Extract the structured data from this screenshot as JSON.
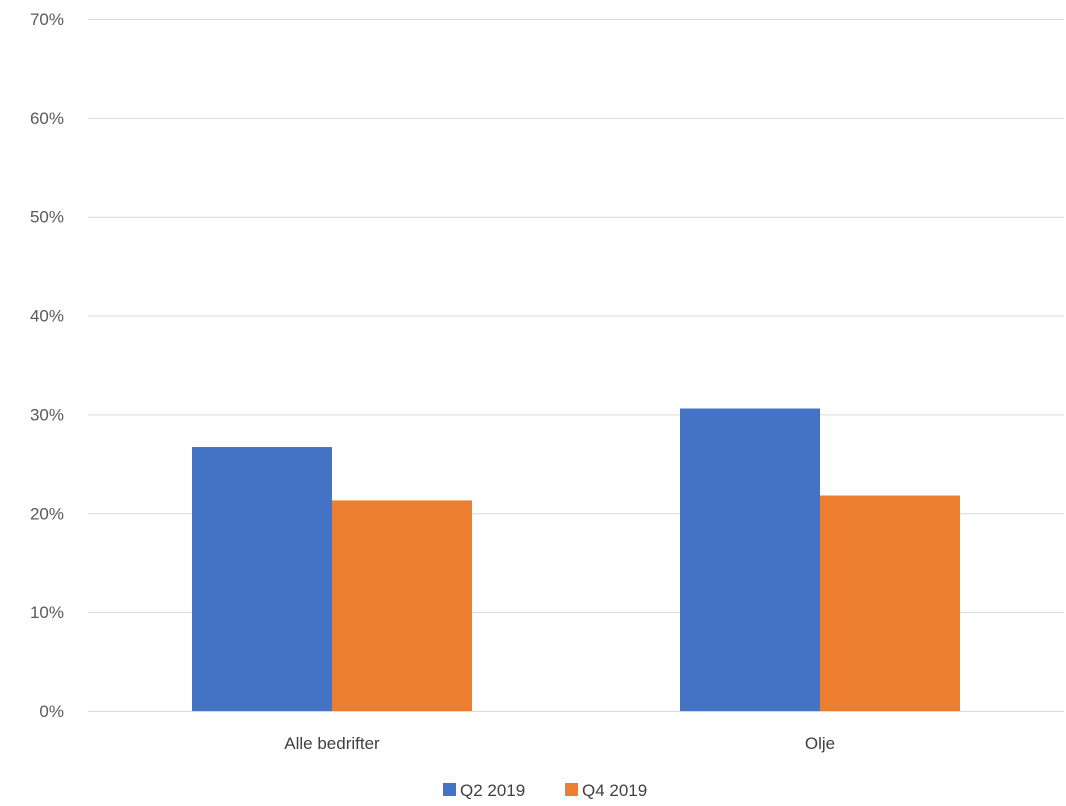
{
  "chart_data": {
    "type": "bar",
    "categories": [
      "Alle bedrifter",
      "Olje"
    ],
    "series": [
      {
        "name": "Q2 2019",
        "values": [
          26.7,
          30.6
        ],
        "color": "#4472C4"
      },
      {
        "name": "Q4 2019",
        "values": [
          21.3,
          21.8
        ],
        "color": "#ED7D31"
      }
    ],
    "ylim": [
      0,
      70
    ],
    "yticks": [
      0,
      10,
      20,
      30,
      40,
      50,
      60,
      70
    ],
    "ytick_labels": [
      "0%",
      "10%",
      "20%",
      "30%",
      "40%",
      "50%",
      "60%",
      "70%"
    ],
    "grid": true,
    "legend_position": "bottom",
    "title": "",
    "xlabel": "",
    "ylabel": ""
  }
}
